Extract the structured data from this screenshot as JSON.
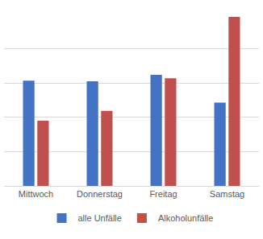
{
  "chart_data": {
    "type": "bar",
    "categories": [
      "Mittwoch",
      "Donnerstag",
      "Freitag",
      "Samstag"
    ],
    "series": [
      {
        "name": "alle Unfälle",
        "color": "#4472c4",
        "values": [
          3.07,
          3.05,
          3.24,
          2.43
        ]
      },
      {
        "name": "Alkoholunfälle",
        "color": "#c0504d",
        "values": [
          1.9,
          2.19,
          3.14,
          4.93
        ]
      }
    ],
    "ylim": [
      0,
      5
    ],
    "yticks": [
      0,
      1,
      2,
      3,
      4,
      5
    ],
    "grid": true,
    "legend": "bottom",
    "tick_labels": "x"
  }
}
